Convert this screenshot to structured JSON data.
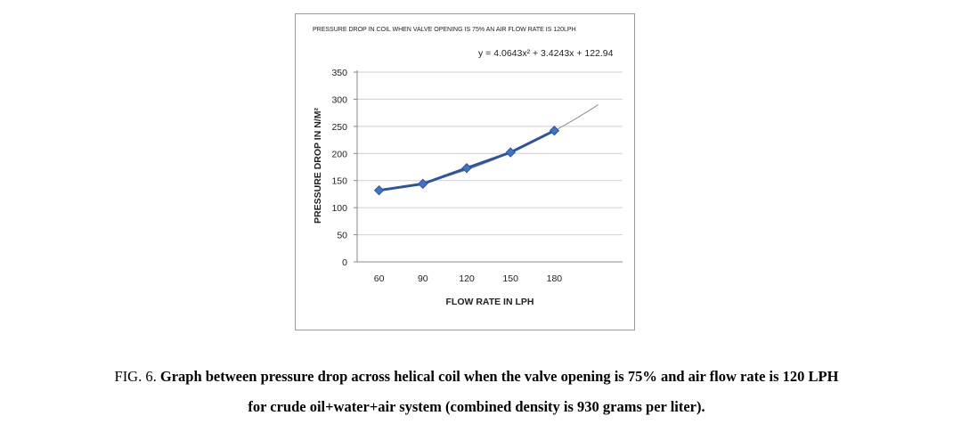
{
  "chart_data": {
    "type": "line",
    "title": "PRESSURE DROP IN COIL WHEN VALVE OPENING IS 75% AN AIR FLOW RATE IS 120LPH",
    "xlabel": "FLOW RATE IN LPH",
    "ylabel": "PRESSURE DROP IN N/M²",
    "categories": [
      "60",
      "90",
      "120",
      "150",
      "180"
    ],
    "series": [
      {
        "values": [
          132,
          144,
          173,
          202,
          242
        ]
      }
    ],
    "trendline": {
      "type": "polynomial",
      "order": 2,
      "equation": "y = 4.0643x² + 3.4243x + 122.94",
      "coefficients": [
        4.0643,
        3.4243,
        122.94
      ],
      "extends_to_x_index": 6
    },
    "ylim": [
      0,
      350
    ],
    "yticks": [
      "0",
      "50",
      "100",
      "150",
      "200",
      "250",
      "300",
      "350"
    ],
    "grid": true,
    "legend": "none",
    "colors": {
      "series": "#2F5597",
      "marker": "#4472C4",
      "trendline": "#8c8c8c",
      "grid": "#d0d0d0"
    }
  },
  "caption": {
    "prefix": "FIG. 6.",
    "line1": "Graph between pressure drop across helical coil when the valve opening is 75% and air flow rate is 120 LPH",
    "line2": "for crude oil+water+air system (combined density is 930 grams per liter)."
  }
}
